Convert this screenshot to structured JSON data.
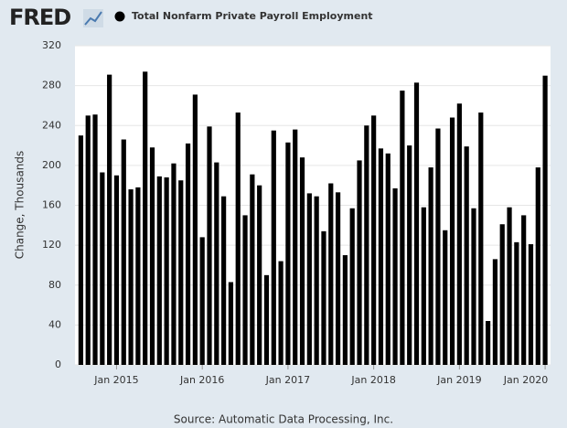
{
  "logo": "FRED",
  "chart_data": {
    "type": "bar",
    "series": [
      {
        "name": "Total Nonfarm Private Payroll Employment",
        "color": "#000000",
        "values": [
          230,
          250,
          251,
          193,
          291,
          190,
          226,
          176,
          178,
          294,
          218,
          189,
          188,
          202,
          185,
          222,
          271,
          128,
          239,
          203,
          169,
          83,
          253,
          150,
          191,
          180,
          90,
          235,
          104,
          223,
          236,
          208,
          172,
          169,
          134,
          182,
          173,
          110,
          157,
          205,
          240,
          250,
          217,
          212,
          177,
          275,
          220,
          283,
          158,
          198,
          237,
          135,
          248,
          262,
          219,
          157,
          253,
          44,
          106,
          141,
          158,
          123,
          150,
          121,
          198,
          290
        ]
      }
    ],
    "categories": [
      null,
      null,
      null,
      null,
      null,
      "Jan 2015",
      null,
      null,
      null,
      null,
      null,
      null,
      null,
      null,
      null,
      null,
      null,
      "Jan 2016",
      null,
      null,
      null,
      null,
      null,
      null,
      null,
      null,
      null,
      null,
      null,
      "Jan 2017",
      null,
      null,
      null,
      null,
      null,
      null,
      null,
      null,
      null,
      null,
      null,
      "Jan 2018",
      null,
      null,
      null,
      null,
      null,
      null,
      null,
      null,
      null,
      null,
      null,
      "Jan 2019",
      null,
      null,
      null,
      null,
      null,
      null,
      null,
      null,
      null,
      null,
      null,
      "Jan 2020"
    ],
    "y_label": "Change, Thousands",
    "ylim": [
      0,
      320
    ],
    "yticks": [
      0,
      40,
      80,
      120,
      160,
      200,
      240,
      280,
      320
    ],
    "grid": true,
    "source": "Source: Automatic Data Processing, Inc."
  }
}
